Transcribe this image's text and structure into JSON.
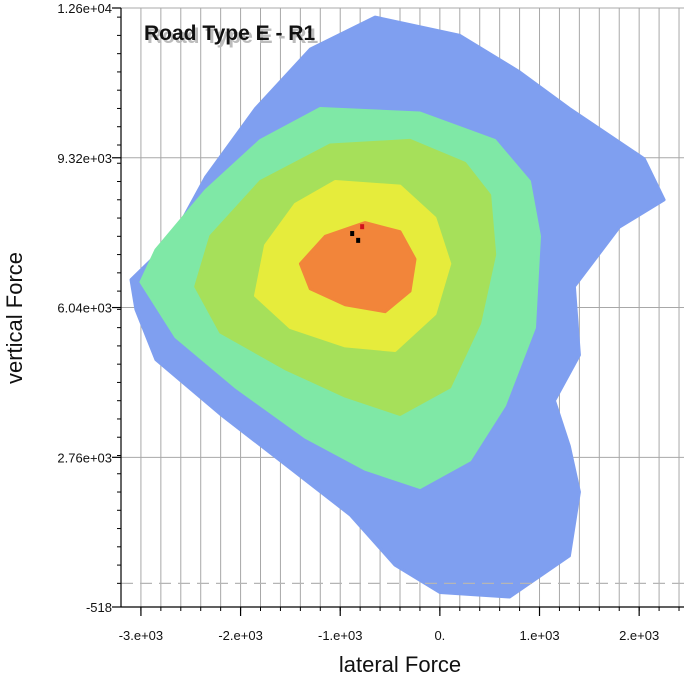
{
  "chart_data": {
    "type": "heatmap",
    "title": "Road Type E - R1",
    "xlabel": "lateral Force",
    "ylabel": "vertical Force",
    "xlim": [
      -3200,
      2450
    ],
    "ylim": [
      -518,
      12600
    ],
    "x_ticks": [
      {
        "value": -3000,
        "label": "-3.e+03"
      },
      {
        "value": -2000,
        "label": "-2.e+03"
      },
      {
        "value": -1000,
        "label": "-1.e+03"
      },
      {
        "value": 0,
        "label": "0."
      },
      {
        "value": 1000,
        "label": "1.e+03"
      },
      {
        "value": 2000,
        "label": "2.e+03"
      }
    ],
    "y_ticks": [
      {
        "value": -518,
        "label": "-518"
      },
      {
        "value": 2760,
        "label": "2.76e+03"
      },
      {
        "value": 6040,
        "label": "6.04e+03"
      },
      {
        "value": 9320,
        "label": "9.32e+03"
      },
      {
        "value": 12600,
        "label": "1.26e+04"
      }
    ],
    "grid": true,
    "reference_line_y": 0,
    "colors": {
      "level1": "#7f9ff0",
      "level2": "#7fe8a6",
      "level3": "#a6e05a",
      "level4": "#e6ec3c",
      "level5": "#f2853a",
      "level6": "#d0121d",
      "peak": "#000000",
      "grid": "#a8a8a8",
      "axis": "#000000"
    },
    "density_levels": [
      {
        "level": 1,
        "color": "#7f9ff0",
        "polygon": [
          [
            -650,
            12400
          ],
          [
            200,
            12000
          ],
          [
            800,
            11200
          ],
          [
            1300,
            10400
          ],
          [
            2050,
            9300
          ],
          [
            2250,
            8400
          ],
          [
            1800,
            7800
          ],
          [
            1350,
            6500
          ],
          [
            1400,
            5000
          ],
          [
            1150,
            4000
          ],
          [
            1300,
            3000
          ],
          [
            1400,
            2000
          ],
          [
            1300,
            600
          ],
          [
            700,
            -300
          ],
          [
            0,
            -200
          ],
          [
            -450,
            400
          ],
          [
            -900,
            1500
          ],
          [
            -1550,
            2600
          ],
          [
            -2200,
            3700
          ],
          [
            -2850,
            4900
          ],
          [
            -3050,
            6000
          ],
          [
            -3100,
            6650
          ],
          [
            -2700,
            7500
          ],
          [
            -2350,
            8900
          ],
          [
            -1850,
            10400
          ],
          [
            -1300,
            11700
          ]
        ]
      },
      {
        "level": 2,
        "color": "#7fe8a6",
        "polygon": [
          [
            -1200,
            10400
          ],
          [
            -200,
            10300
          ],
          [
            550,
            9700
          ],
          [
            900,
            8800
          ],
          [
            1000,
            7600
          ],
          [
            950,
            5600
          ],
          [
            650,
            3900
          ],
          [
            300,
            2700
          ],
          [
            -200,
            2100
          ],
          [
            -750,
            2500
          ],
          [
            -1350,
            3200
          ],
          [
            -2050,
            4300
          ],
          [
            -2650,
            5400
          ],
          [
            -3000,
            6600
          ],
          [
            -2850,
            7300
          ],
          [
            -2350,
            8600
          ],
          [
            -1800,
            9700
          ]
        ]
      },
      {
        "level": 3,
        "color": "#a6e05a",
        "polygon": [
          [
            -1100,
            9600
          ],
          [
            -300,
            9700
          ],
          [
            250,
            9200
          ],
          [
            500,
            8500
          ],
          [
            550,
            7200
          ],
          [
            400,
            5700
          ],
          [
            100,
            4300
          ],
          [
            -400,
            3700
          ],
          [
            -950,
            4100
          ],
          [
            -1550,
            4700
          ],
          [
            -2200,
            5500
          ],
          [
            -2450,
            6500
          ],
          [
            -2300,
            7600
          ],
          [
            -1800,
            8800
          ]
        ]
      },
      {
        "level": 4,
        "color": "#e6ec3c",
        "polygon": [
          [
            -1050,
            8800
          ],
          [
            -400,
            8700
          ],
          [
            -50,
            8000
          ],
          [
            100,
            7000
          ],
          [
            -50,
            5900
          ],
          [
            -450,
            5100
          ],
          [
            -950,
            5200
          ],
          [
            -1500,
            5600
          ],
          [
            -1850,
            6300
          ],
          [
            -1750,
            7400
          ],
          [
            -1450,
            8300
          ]
        ]
      },
      {
        "level": 5,
        "color": "#f2853a",
        "polygon": [
          [
            -750,
            7900
          ],
          [
            -400,
            7700
          ],
          [
            -250,
            7100
          ],
          [
            -300,
            6400
          ],
          [
            -550,
            5950
          ],
          [
            -950,
            6100
          ],
          [
            -1300,
            6450
          ],
          [
            -1400,
            7000
          ],
          [
            -1150,
            7600
          ]
        ]
      }
    ],
    "peak_points": [
      [
        -820,
        7500
      ],
      [
        -880,
        7650
      ],
      [
        -780,
        7800
      ]
    ]
  }
}
